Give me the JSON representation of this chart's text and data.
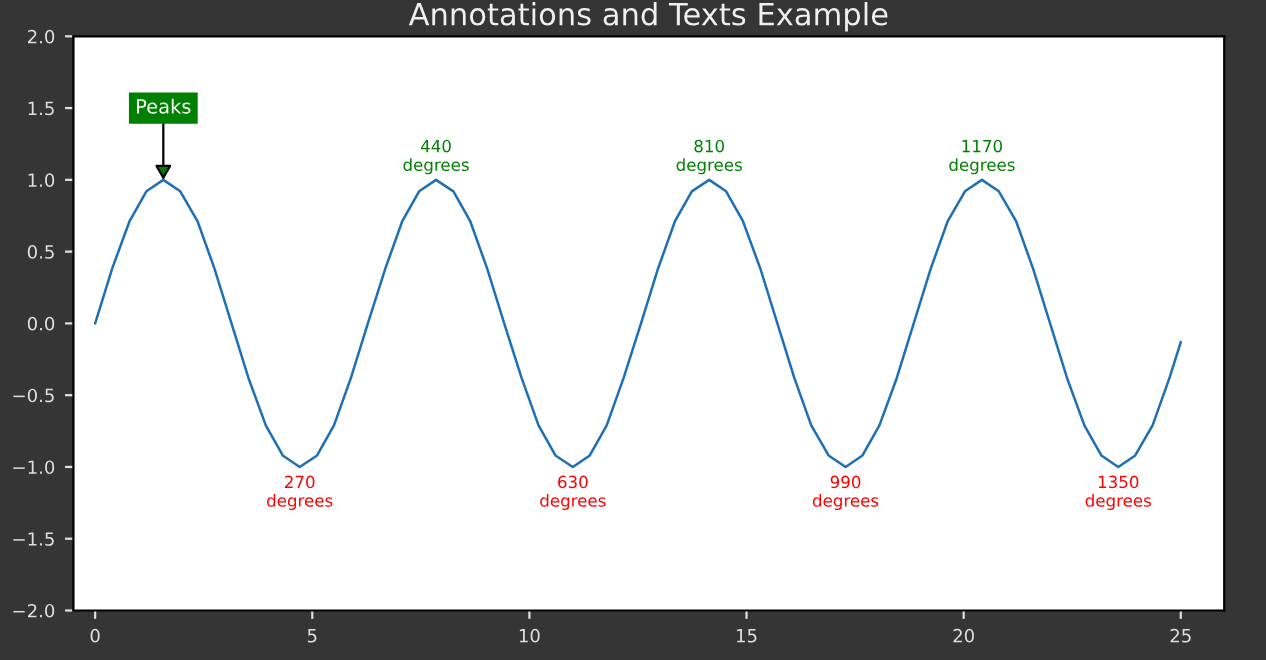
{
  "chart_data": {
    "type": "line",
    "title": "Annotations and Texts Example",
    "x": [
      0,
      0.39,
      0.79,
      1.18,
      1.57,
      1.96,
      2.36,
      2.75,
      3.14,
      3.53,
      3.93,
      4.32,
      4.71,
      5.11,
      5.5,
      5.89,
      6.28,
      6.68,
      7.07,
      7.46,
      7.85,
      8.25,
      8.64,
      9.03,
      9.42,
      9.82,
      10.21,
      10.6,
      11.0,
      11.39,
      11.78,
      12.17,
      12.57,
      12.96,
      13.35,
      13.74,
      14.14,
      14.53,
      14.92,
      15.32,
      15.71,
      16.1,
      16.49,
      16.89,
      17.28,
      17.67,
      18.06,
      18.46,
      18.85,
      19.24,
      19.63,
      20.03,
      20.42,
      20.81,
      21.21,
      21.6,
      21.99,
      22.38,
      22.78,
      23.17,
      23.56,
      23.95,
      24.35,
      24.74,
      25
    ],
    "series": [
      {
        "color": "#1f6fb4",
        "values": [
          0,
          0.38,
          0.71,
          0.92,
          1,
          0.92,
          0.71,
          0.38,
          0,
          -0.38,
          -0.71,
          -0.92,
          -1,
          -0.92,
          -0.71,
          -0.38,
          0,
          0.38,
          0.71,
          0.92,
          1,
          0.92,
          0.71,
          0.38,
          0,
          -0.38,
          -0.71,
          -0.92,
          -1,
          -0.92,
          -0.71,
          -0.38,
          0,
          0.38,
          0.71,
          0.92,
          1,
          0.92,
          0.71,
          0.38,
          0,
          -0.38,
          -0.71,
          -0.92,
          -1,
          -0.92,
          -0.71,
          -0.38,
          0,
          0.38,
          0.71,
          0.92,
          1,
          0.92,
          0.71,
          0.38,
          0,
          -0.38,
          -0.71,
          -0.92,
          -1,
          -0.92,
          -0.71,
          -0.38,
          -0.13
        ]
      }
    ],
    "xlim": [
      -0.5,
      26
    ],
    "xticks": [
      0,
      5,
      10,
      15,
      20,
      25
    ],
    "ylim": [
      -2.0,
      2.0
    ],
    "yticks": [
      {
        "value": -2.0,
        "label": "−2.0"
      },
      {
        "value": -1.5,
        "label": "−1.5"
      },
      {
        "value": -1.0,
        "label": "−1.0"
      },
      {
        "value": -0.5,
        "label": "−0.5"
      },
      {
        "value": 0.0,
        "label": "0.0"
      },
      {
        "value": 0.5,
        "label": "0.5"
      },
      {
        "value": 1.0,
        "label": "1.0"
      },
      {
        "value": 1.5,
        "label": "1.5"
      },
      {
        "value": 2.0,
        "label": "2.0"
      }
    ],
    "annotations": [
      {
        "text": "Peaks",
        "x": 1.57,
        "y": 1
      },
      {
        "text": "440\ndegrees",
        "x": 7.85,
        "y": 1
      },
      {
        "text": "810\ndegrees",
        "x": 14.14,
        "y": 1
      },
      {
        "text": "1170\ndegrees",
        "x": 20.42,
        "y": 1
      },
      {
        "text": "270\ndegrees",
        "x": 4.71,
        "y": -1
      },
      {
        "text": "630\ndegrees",
        "x": 11.0,
        "y": -1
      },
      {
        "text": "990\ndegrees",
        "x": 17.28,
        "y": -1
      },
      {
        "text": "1350\ndegrees",
        "x": 23.56,
        "y": -1
      }
    ],
    "grid": false,
    "legend": false,
    "marker": "none",
    "line_style": "solid"
  }
}
